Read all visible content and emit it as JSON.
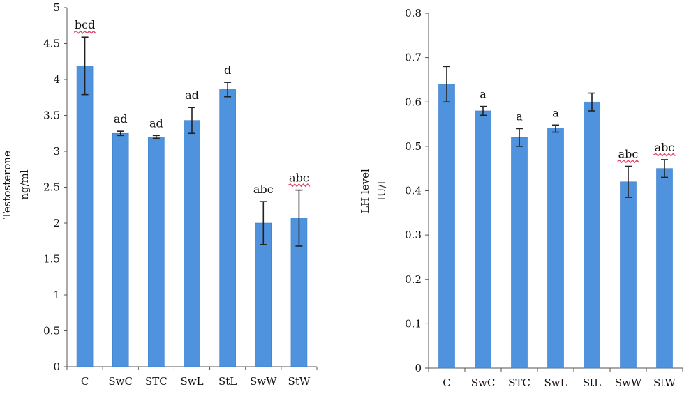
{
  "colors": {
    "bar": "#4f93de",
    "bar_edge": "#3a7cc9",
    "axis": "#555555",
    "error_bar": "#222222",
    "squiggle": "#e0446a"
  },
  "chart_data": [
    {
      "type": "bar",
      "title": "",
      "ylabel": [
        "Testosterone",
        "ng/ml"
      ],
      "xlabel": "",
      "ylim": [
        0,
        5
      ],
      "yticks": [
        "0",
        "0.5",
        "1",
        "1.5",
        "2",
        "2.5",
        "3",
        "3.5",
        "4",
        "4.5",
        "5"
      ],
      "tick_step": 0.5,
      "grid": false,
      "categories": [
        "C",
        "SwC",
        "STC",
        "SwL",
        "StL",
        "SwW",
        "StW"
      ],
      "values": [
        4.19,
        3.25,
        3.2,
        3.43,
        3.86,
        2.0,
        2.07
      ],
      "errors": [
        0.4,
        0.03,
        0.02,
        0.18,
        0.1,
        0.3,
        0.39
      ],
      "annotations": [
        "bcd",
        "ad",
        "ad",
        "ad",
        "d",
        "abc",
        "abc"
      ],
      "squiggle_under": [
        true,
        false,
        false,
        false,
        false,
        false,
        true
      ]
    },
    {
      "type": "bar",
      "title": "",
      "ylabel": [
        "LH level",
        "IU/l"
      ],
      "xlabel": "",
      "ylim": [
        0,
        0.8
      ],
      "yticks": [
        "0",
        "0.1",
        "0.2",
        "0.3",
        "0.4",
        "0.5",
        "0.6",
        "0.7",
        "0.8"
      ],
      "tick_step": 0.1,
      "grid": false,
      "categories": [
        "C",
        "SwC",
        "STC",
        "SwL",
        "StL",
        "SwW",
        "StW"
      ],
      "values": [
        0.64,
        0.58,
        0.52,
        0.54,
        0.6,
        0.42,
        0.45
      ],
      "errors": [
        0.04,
        0.01,
        0.02,
        0.008,
        0.02,
        0.035,
        0.02
      ],
      "annotations": [
        "",
        "a",
        "a",
        "a",
        "",
        "abc",
        "abc"
      ],
      "squiggle_under": [
        false,
        false,
        false,
        false,
        false,
        true,
        true
      ]
    }
  ]
}
